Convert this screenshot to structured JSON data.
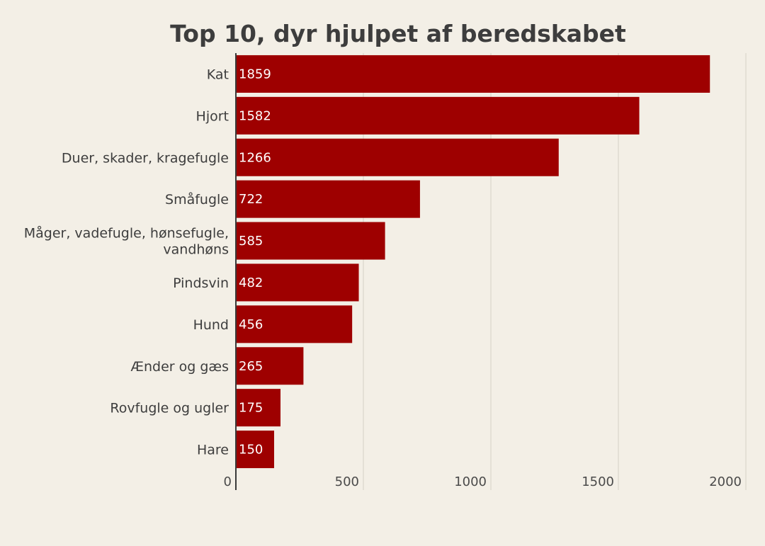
{
  "chart_data": {
    "type": "bar",
    "orientation": "horizontal",
    "title": "Top 10, dyr hjulpet af beredskabet",
    "categories": [
      "Kat",
      "Hjort",
      "Duer, skader, kragefugle",
      "Småfugle",
      "Måger, vadefugle, hønsefugle, vandhøns",
      "Pindsvin",
      "Hund",
      "Ænder og gæs",
      "Rovfugle og ugler",
      "Hare"
    ],
    "category_label_lines": [
      [
        "Kat"
      ],
      [
        "Hjort"
      ],
      [
        "Duer, skader, kragefugle"
      ],
      [
        "Småfugle"
      ],
      [
        "Måger, vadefugle, hønsefugle,",
        "vandhøns"
      ],
      [
        "Pindsvin"
      ],
      [
        "Hund"
      ],
      [
        "Ænder og gæs"
      ],
      [
        "Rovfugle og ugler"
      ],
      [
        "Hare"
      ]
    ],
    "values": [
      1859,
      1582,
      1266,
      722,
      585,
      482,
      456,
      265,
      175,
      150
    ],
    "xlim": [
      0,
      2000
    ],
    "x_ticks": [
      0,
      500,
      1000,
      1500,
      2000
    ],
    "x_tick_labels": [
      "0",
      "500",
      "1000",
      "1500",
      "2000"
    ],
    "xlabel": "",
    "ylabel": "",
    "grid": true,
    "legend": "none",
    "show_value_labels": true,
    "bar_color": "#9e0000",
    "background_color": "#f3efe6"
  }
}
